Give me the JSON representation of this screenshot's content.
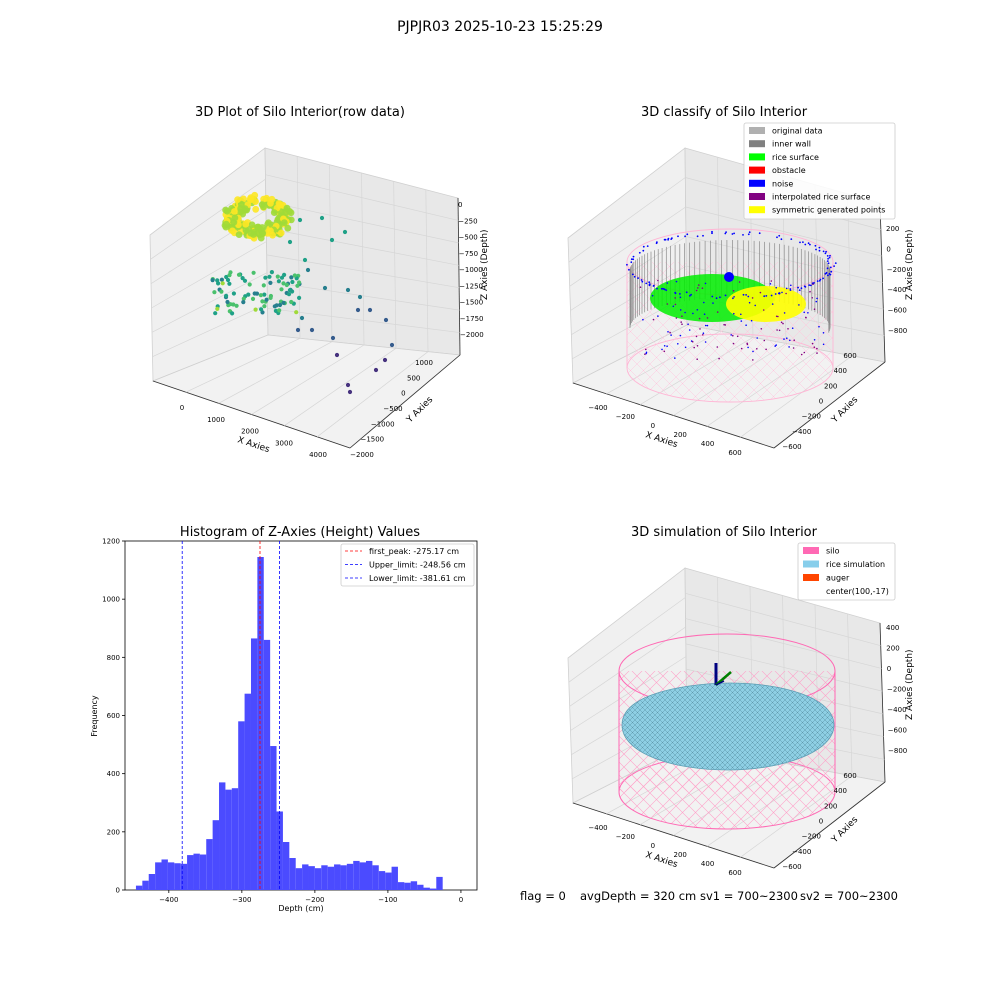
{
  "figure_title": "PJPJR03 2025-10-23 15:25:29",
  "status": {
    "flag": "flag = 0",
    "avg_depth": "avgDepth = 320 cm",
    "sv1": "sv1 = 700~2300",
    "sv2": "sv2 = 700~2300"
  },
  "chart_data": [
    {
      "type": "scatter",
      "title": "3D Plot of Silo Interior(row data)",
      "xlabel": "X Axies",
      "ylabel": "Y Axies",
      "zlabel": "Z Axies (Depth)",
      "x_ticks": [
        "0",
        "1000",
        "2000",
        "3000",
        "4000"
      ],
      "y_ticks": [
        "1000",
        "500",
        "0",
        "−500",
        "−1000",
        "−1500",
        "−2000"
      ],
      "z_ticks": [
        "0",
        "−250",
        "−500",
        "−750",
        "−1000",
        "−1250",
        "−1500",
        "−1750",
        "−2000"
      ],
      "xlim": [
        -600,
        4600
      ],
      "ylim": [
        -2000,
        1300
      ],
      "zlim": [
        -2000,
        100
      ],
      "colormap": "viridis (by depth)"
    },
    {
      "type": "scatter",
      "title": "3D classify of Silo Interior",
      "xlabel": "X Axies",
      "ylabel": "Y Axies",
      "zlabel": "Z Axies (Depth)",
      "x_ticks": [
        "−400",
        "−200",
        "0",
        "200",
        "400",
        "600"
      ],
      "y_ticks": [
        "600",
        "400",
        "200",
        "0",
        "−200",
        "−400",
        "−600"
      ],
      "z_ticks": [
        "200",
        "0",
        "−200",
        "−400",
        "−600",
        "−800"
      ],
      "legend_position": "top-right",
      "legend": [
        {
          "label": "original data",
          "color": "#b0b0b0"
        },
        {
          "label": "inner wall",
          "color": "#808080"
        },
        {
          "label": "rice surface",
          "color": "#00ff00"
        },
        {
          "label": "obstacle",
          "color": "#ff0000"
        },
        {
          "label": "noise",
          "color": "#0000ff"
        },
        {
          "label": "interpolated rice surface",
          "color": "#800080"
        },
        {
          "label": "symmetric generated points",
          "color": "#ffff00"
        }
      ]
    },
    {
      "type": "bar",
      "title": "Histogram of Z-Axies (Height) Values",
      "xlabel": "Depth (cm)",
      "ylabel": "Frequency",
      "xlim": [
        -460,
        22
      ],
      "ylim": [
        0,
        1200
      ],
      "x_ticks": [
        -400,
        -300,
        -200,
        -100,
        0
      ],
      "x_tick_labels": [
        "−400",
        "−300",
        "−200",
        "−100",
        "0"
      ],
      "y_ticks": [
        0,
        200,
        400,
        600,
        800,
        1000,
        1200
      ],
      "bin_start": -445,
      "bin_width": 8.75,
      "values": [
        15,
        32,
        55,
        95,
        105,
        95,
        92,
        90,
        120,
        125,
        122,
        175,
        240,
        370,
        345,
        350,
        580,
        675,
        865,
        1145,
        860,
        495,
        270,
        165,
        110,
        75,
        88,
        82,
        75,
        85,
        80,
        88,
        85,
        90,
        100,
        95,
        100,
        85,
        65,
        60,
        80,
        27,
        25,
        30,
        18,
        8,
        5,
        45
      ],
      "bar_color": "#4b4bff",
      "lines": [
        {
          "label": "first_peak: -275.17 cm",
          "x": -275.17,
          "color": "#ff0000"
        },
        {
          "label": "Upper_limit: -248.56 cm",
          "x": -248.56,
          "color": "#0000ff"
        },
        {
          "label": "Lower_limit: -381.61 cm",
          "x": -381.61,
          "color": "#0000ff"
        }
      ],
      "legend_position": "top-right"
    },
    {
      "type": "scatter",
      "title": "3D simulation of Silo Interior",
      "xlabel": "X Axies",
      "ylabel": "Y Axies",
      "zlabel": "Z Axies (Depth)",
      "x_ticks": [
        "−400",
        "−200",
        "0",
        "200",
        "400",
        "600"
      ],
      "y_ticks": [
        "600",
        "400",
        "200",
        "0",
        "−200",
        "−400",
        "−600"
      ],
      "z_ticks": [
        "400",
        "200",
        "0",
        "−200",
        "−400",
        "−600",
        "−800"
      ],
      "legend_position": "top-right",
      "legend": [
        {
          "label": "silo",
          "color": "#ff69b4"
        },
        {
          "label": "rice simulation",
          "color": "#87ceeb"
        },
        {
          "label": "auger",
          "color": "#ff4500"
        },
        {
          "label": "center(100,-17)",
          "color": ""
        }
      ]
    }
  ]
}
